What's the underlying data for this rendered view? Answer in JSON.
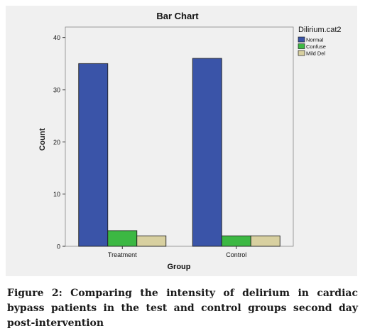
{
  "caption": "Figure 2: Comparing the intensity of delirium in cardiac bypass patients in the test and control groups second day post-intervention",
  "chart_data": {
    "type": "bar",
    "title": "Bar Chart",
    "xlabel": "Group",
    "ylabel": "Count",
    "categories": [
      "Treatment",
      "Control"
    ],
    "ylim": [
      0,
      42
    ],
    "yticks": [
      0,
      10,
      20,
      30,
      40
    ],
    "legend_title": "Dilirium.cat2",
    "legend_position": "top-right",
    "grid": false,
    "series": [
      {
        "name": "Normal",
        "color": "#3a54a8",
        "values": [
          35,
          36
        ]
      },
      {
        "name": "Confuse",
        "color": "#3cb843",
        "values": [
          3,
          2
        ]
      },
      {
        "name": "Mild Del",
        "color": "#d8d0a0",
        "values": [
          2,
          2
        ]
      }
    ]
  }
}
